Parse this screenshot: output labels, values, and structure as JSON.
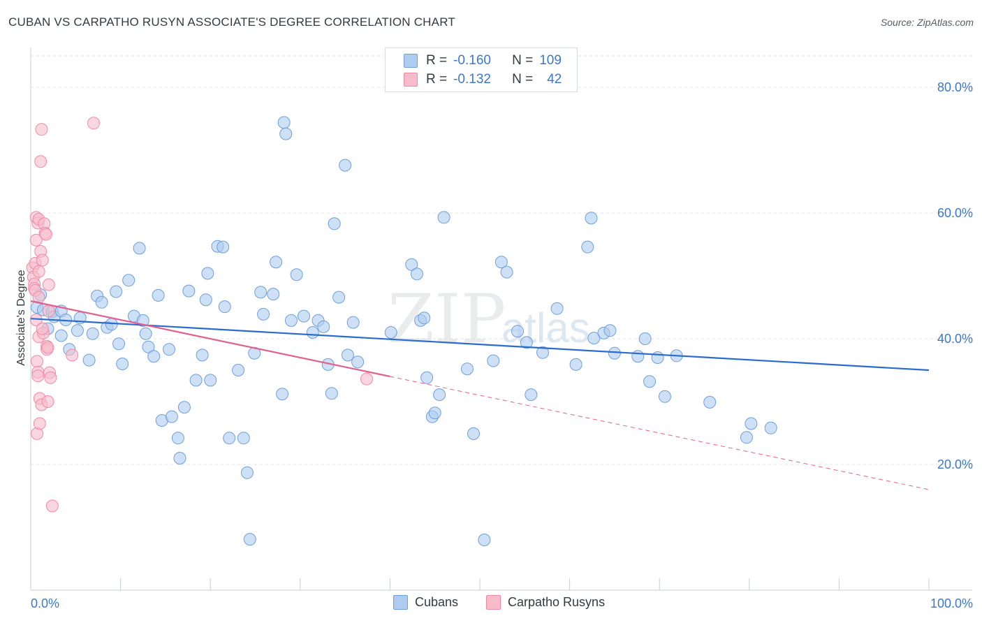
{
  "header": {
    "title": "CUBAN VS CARPATHO RUSYN ASSOCIATE'S DEGREE CORRELATION CHART",
    "source": "Source: ZipAtlas.com"
  },
  "watermark": {
    "big": "ZIP",
    "small": "atlas"
  },
  "legend": {
    "rows": [
      {
        "r_label": "R =",
        "r_value": "-0.160",
        "n_label": "N =",
        "n_value": "109"
      },
      {
        "r_label": "R =",
        "r_value": "-0.132",
        "n_label": "N =",
        "n_value": "42"
      }
    ]
  },
  "colors": {
    "cubans_fill": "#aecbf0",
    "cubans_stroke": "#6f9fd8",
    "cubans_line": "#2a6ccc",
    "rusyns_fill": "#f7bccb",
    "rusyns_stroke": "#ee8aa8",
    "rusyns_line": "#e0608e",
    "tick_text": "#3c78c8",
    "grid": "#e1e3e6"
  },
  "chart_data": {
    "type": "scatter",
    "title": "CUBAN VS CARPATHO RUSYN ASSOCIATE'S DEGREE CORRELATION CHART",
    "xlabel": "",
    "ylabel": "Associate's Degree",
    "xlim": [
      0,
      100
    ],
    "ylim": [
      0,
      85
    ],
    "x_tick_labels": [
      "0.0%",
      "100.0%"
    ],
    "y_ticks": [
      20,
      40,
      60,
      80
    ],
    "y_tick_labels": [
      "20.0%",
      "40.0%",
      "60.0%",
      "80.0%"
    ],
    "grid": true,
    "legend_position": "bottom-center",
    "series": [
      {
        "name": "Cubans",
        "r": -0.16,
        "n": 109,
        "trend": {
          "x": [
            0,
            100
          ],
          "y": [
            43.2,
            35.0
          ],
          "dashed_from_x": null
        },
        "points": [
          [
            0.7,
            45.0
          ],
          [
            1.1,
            47.0
          ],
          [
            1.4,
            44.6
          ],
          [
            1.9,
            41.6
          ],
          [
            2.4,
            44.3
          ],
          [
            2.6,
            43.5
          ],
          [
            3.4,
            44.4
          ],
          [
            3.4,
            40.5
          ],
          [
            3.9,
            43.0
          ],
          [
            4.3,
            38.3
          ],
          [
            5.2,
            41.3
          ],
          [
            5.5,
            43.3
          ],
          [
            6.5,
            36.6
          ],
          [
            6.9,
            40.8
          ],
          [
            7.4,
            46.8
          ],
          [
            7.9,
            45.8
          ],
          [
            8.5,
            41.8
          ],
          [
            9.0,
            42.3
          ],
          [
            9.5,
            47.5
          ],
          [
            9.8,
            39.2
          ],
          [
            10.2,
            36.0
          ],
          [
            10.9,
            49.3
          ],
          [
            11.5,
            43.6
          ],
          [
            12.1,
            54.4
          ],
          [
            12.5,
            42.9
          ],
          [
            12.8,
            40.8
          ],
          [
            13.1,
            38.7
          ],
          [
            13.7,
            37.2
          ],
          [
            14.2,
            46.9
          ],
          [
            14.6,
            27.0
          ],
          [
            15.4,
            38.3
          ],
          [
            15.7,
            27.6
          ],
          [
            16.4,
            24.2
          ],
          [
            16.6,
            21.0
          ],
          [
            17.1,
            29.1
          ],
          [
            17.6,
            47.6
          ],
          [
            18.4,
            33.4
          ],
          [
            19.1,
            37.4
          ],
          [
            19.5,
            46.2
          ],
          [
            19.7,
            50.4
          ],
          [
            20.0,
            33.4
          ],
          [
            20.8,
            54.7
          ],
          [
            21.4,
            54.6
          ],
          [
            21.6,
            45.1
          ],
          [
            22.1,
            24.2
          ],
          [
            23.1,
            35.0
          ],
          [
            23.7,
            24.2
          ],
          [
            24.1,
            18.7
          ],
          [
            24.4,
            8.1
          ],
          [
            24.9,
            37.7
          ],
          [
            25.6,
            47.4
          ],
          [
            25.9,
            43.9
          ],
          [
            27.0,
            47.1
          ],
          [
            27.3,
            52.2
          ],
          [
            28.0,
            31.2
          ],
          [
            28.2,
            74.4
          ],
          [
            28.4,
            72.6
          ],
          [
            29.0,
            42.9
          ],
          [
            29.6,
            50.2
          ],
          [
            30.4,
            43.6
          ],
          [
            31.4,
            41.0
          ],
          [
            32.0,
            42.9
          ],
          [
            32.6,
            41.9
          ],
          [
            33.1,
            35.9
          ],
          [
            33.5,
            31.3
          ],
          [
            33.8,
            58.3
          ],
          [
            34.3,
            46.6
          ],
          [
            35.0,
            67.6
          ],
          [
            35.3,
            37.4
          ],
          [
            35.9,
            42.6
          ],
          [
            36.4,
            36.3
          ],
          [
            40.1,
            41.0
          ],
          [
            42.4,
            51.8
          ],
          [
            43.0,
            50.3
          ],
          [
            43.4,
            42.9
          ],
          [
            43.8,
            43.3
          ],
          [
            44.1,
            33.8
          ],
          [
            44.7,
            27.6
          ],
          [
            45.0,
            28.2
          ],
          [
            45.5,
            31.1
          ],
          [
            46.0,
            59.3
          ],
          [
            48.6,
            35.2
          ],
          [
            49.3,
            24.9
          ],
          [
            50.5,
            8.0
          ],
          [
            51.5,
            36.5
          ],
          [
            52.4,
            52.2
          ],
          [
            53.0,
            50.6
          ],
          [
            54.2,
            41.2
          ],
          [
            55.2,
            39.4
          ],
          [
            55.7,
            31.1
          ],
          [
            57.0,
            37.8
          ],
          [
            58.6,
            44.8
          ],
          [
            60.7,
            35.9
          ],
          [
            62.0,
            54.6
          ],
          [
            62.4,
            59.2
          ],
          [
            62.7,
            40.1
          ],
          [
            63.8,
            40.9
          ],
          [
            64.5,
            41.3
          ],
          [
            65.0,
            37.7
          ],
          [
            67.6,
            37.2
          ],
          [
            68.4,
            40.0
          ],
          [
            68.9,
            33.2
          ],
          [
            69.8,
            37.0
          ],
          [
            70.6,
            30.8
          ],
          [
            71.9,
            37.3
          ],
          [
            75.6,
            29.9
          ],
          [
            79.7,
            24.3
          ],
          [
            80.2,
            26.5
          ],
          [
            82.4,
            25.8
          ]
        ]
      },
      {
        "name": "Carpatho Rusyns",
        "r": -0.132,
        "n": 42,
        "trend": {
          "x": [
            0,
            100
          ],
          "y": [
            46.0,
            16.0
          ],
          "dashed_from_x": 40
        },
        "points": [
          [
            0.2,
            51.3
          ],
          [
            0.3,
            49.8
          ],
          [
            0.4,
            48.7
          ],
          [
            0.4,
            48.0
          ],
          [
            0.5,
            47.7
          ],
          [
            0.5,
            52.0
          ],
          [
            0.6,
            55.7
          ],
          [
            0.6,
            59.3
          ],
          [
            0.7,
            36.4
          ],
          [
            0.7,
            24.9
          ],
          [
            0.8,
            34.7
          ],
          [
            0.8,
            34.1
          ],
          [
            0.8,
            58.4
          ],
          [
            0.9,
            59.0
          ],
          [
            0.9,
            50.7
          ],
          [
            0.9,
            40.3
          ],
          [
            1.0,
            26.5
          ],
          [
            1.0,
            30.5
          ],
          [
            1.1,
            68.2
          ],
          [
            1.1,
            53.9
          ],
          [
            1.2,
            73.3
          ],
          [
            1.2,
            29.5
          ],
          [
            1.3,
            52.5
          ],
          [
            1.4,
            40.9
          ],
          [
            1.5,
            58.3
          ],
          [
            1.6,
            56.8
          ],
          [
            1.7,
            56.6
          ],
          [
            1.8,
            38.8
          ],
          [
            1.8,
            38.3
          ],
          [
            1.9,
            30.0
          ],
          [
            2.0,
            48.6
          ],
          [
            2.0,
            44.4
          ],
          [
            2.1,
            34.6
          ],
          [
            2.2,
            33.8
          ],
          [
            2.4,
            13.4
          ],
          [
            4.6,
            37.4
          ],
          [
            7.0,
            74.3
          ],
          [
            37.4,
            33.6
          ],
          [
            0.6,
            43.0
          ],
          [
            1.3,
            41.6
          ],
          [
            0.9,
            46.6
          ],
          [
            1.9,
            38.6
          ]
        ]
      }
    ]
  }
}
